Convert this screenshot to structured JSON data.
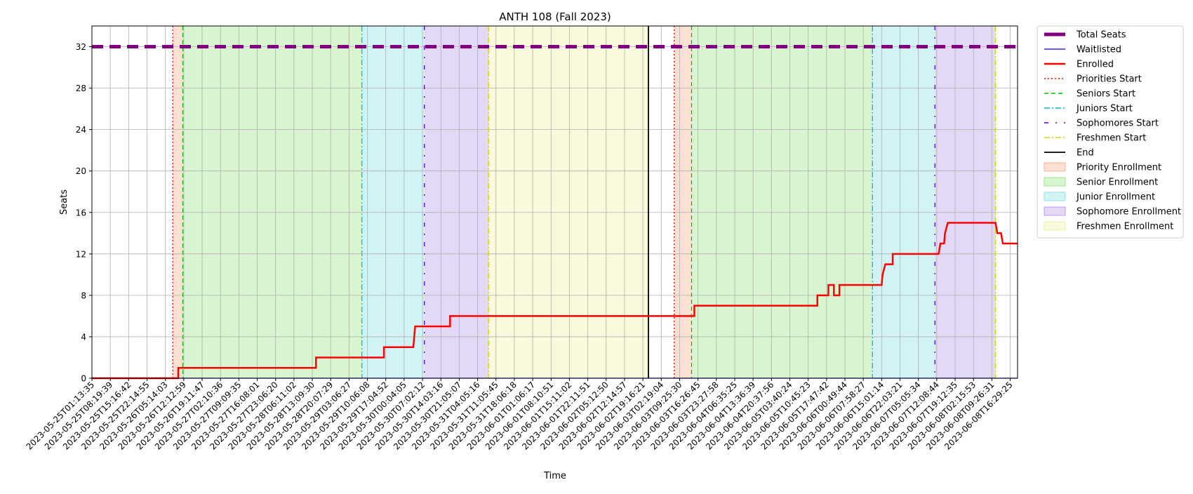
{
  "chart_data": {
    "type": "line",
    "title": "ANTH 108 (Fall 2023)",
    "xlabel": "Time",
    "ylabel": "Seats",
    "ylim": [
      0,
      34
    ],
    "yticks": [
      0,
      4,
      8,
      12,
      16,
      20,
      24,
      28,
      32
    ],
    "grid": true,
    "legend_position": "outside-right",
    "x_tick_labels": [
      "2023-05-25T01:13:35",
      "2023-05-25T08:19:39",
      "2023-05-25T15:16:42",
      "2023-05-25T22:14:55",
      "2023-05-26T05:14:03",
      "2023-05-26T12:12:59",
      "2023-05-26T19:11:47",
      "2023-05-27T02:10:36",
      "2023-05-27T09:09:35",
      "2023-05-27T16:08:01",
      "2023-05-27T23:06:20",
      "2023-05-28T06:11:02",
      "2023-05-28T13:09:30",
      "2023-05-28T20:07:29",
      "2023-05-29T03:06:27",
      "2023-05-29T10:06:08",
      "2023-05-29T17:04:52",
      "2023-05-30T00:04:05",
      "2023-05-30T07:02:12",
      "2023-05-30T14:03:16",
      "2023-05-30T21:05:07",
      "2023-05-31T04:05:16",
      "2023-05-31T11:05:45",
      "2023-05-31T18:06:18",
      "2023-06-01T01:06:17",
      "2023-06-01T08:10:51",
      "2023-06-01T15:11:02",
      "2023-06-01T22:11:51",
      "2023-06-02T05:12:50",
      "2023-06-02T12:14:57",
      "2023-06-02T19:16:21",
      "2023-06-03T02:19:04",
      "2023-06-03T09:25:30",
      "2023-06-03T16:26:45",
      "2023-06-03T23:27:58",
      "2023-06-04T06:35:25",
      "2023-06-04T13:36:39",
      "2023-06-04T20:37:56",
      "2023-06-05T03:40:24",
      "2023-06-05T10:45:23",
      "2023-06-05T17:47:42",
      "2023-06-06T00:49:44",
      "2023-06-06T07:58:27",
      "2023-06-06T15:01:14",
      "2023-06-06T22:03:21",
      "2023-06-07T05:05:34",
      "2023-06-07T12:08:44",
      "2023-06-07T19:12:35",
      "2023-06-08T02:15:53",
      "2023-06-08T09:26:31",
      "2023-06-08T16:29:25"
    ],
    "x_range_ticks": [
      0,
      50.4
    ],
    "total_seats": 32,
    "series": [
      {
        "name": "Total Seats",
        "color": "#800080",
        "points": [
          [
            0,
            32
          ],
          [
            50.4,
            32
          ]
        ]
      },
      {
        "name": "Waitlisted",
        "color": "#0000ff",
        "points": [
          [
            0,
            0
          ],
          [
            50.4,
            0
          ]
        ]
      },
      {
        "name": "Enrolled",
        "color": "#ff0000",
        "points": [
          [
            0,
            0
          ],
          [
            4.7,
            0
          ],
          [
            4.7,
            1
          ],
          [
            12.2,
            1
          ],
          [
            12.2,
            2
          ],
          [
            15.9,
            2
          ],
          [
            15.9,
            3
          ],
          [
            17.5,
            3
          ],
          [
            17.55,
            4
          ],
          [
            17.6,
            5
          ],
          [
            19.5,
            5
          ],
          [
            19.5,
            6
          ],
          [
            32.8,
            6
          ],
          [
            32.8,
            7
          ],
          [
            39.5,
            7
          ],
          [
            39.5,
            8
          ],
          [
            40.1,
            8
          ],
          [
            40.1,
            9
          ],
          [
            40.4,
            9
          ],
          [
            40.4,
            8
          ],
          [
            40.7,
            8
          ],
          [
            40.7,
            9
          ],
          [
            43.0,
            9
          ],
          [
            43.05,
            10
          ],
          [
            43.2,
            11
          ],
          [
            43.6,
            11
          ],
          [
            43.6,
            12
          ],
          [
            46.1,
            12
          ],
          [
            46.2,
            13
          ],
          [
            46.4,
            13
          ],
          [
            46.45,
            14
          ],
          [
            46.6,
            15
          ],
          [
            49.2,
            15
          ],
          [
            49.3,
            14
          ],
          [
            49.5,
            14
          ],
          [
            49.6,
            13
          ],
          [
            50.4,
            13
          ]
        ]
      }
    ],
    "event_lines": [
      {
        "name": "Priorities Start",
        "color": "#ff0000",
        "style": "dotted",
        "x": [
          4.4,
          31.7
        ]
      },
      {
        "name": "Seniors Start",
        "color": "#00c000",
        "style": "dashed",
        "x": [
          4.95,
          32.65
        ]
      },
      {
        "name": "Juniors Start",
        "color": "#00bfbf",
        "style": "dashdot",
        "x": [
          14.7,
          42.5
        ]
      },
      {
        "name": "Sophomores Start",
        "color": "#5500cc",
        "style": "dashdot-sparse",
        "x": [
          18.1,
          45.9
        ]
      },
      {
        "name": "Freshmen Start",
        "color": "#d4d400",
        "style": "dashdot",
        "x": [
          21.6,
          49.2
        ]
      },
      {
        "name": "End",
        "color": "#000000",
        "style": "solid",
        "x": [
          30.3
        ]
      }
    ],
    "phases": [
      {
        "name": "Priority Enrollment",
        "color": "#f4a582",
        "ranges": [
          [
            4.4,
            4.95
          ],
          [
            31.7,
            32.65
          ]
        ]
      },
      {
        "name": "Senior Enrollment",
        "color": "#8fe07a",
        "ranges": [
          [
            4.95,
            14.7
          ],
          [
            32.65,
            42.5
          ]
        ]
      },
      {
        "name": "Junior Enrollment",
        "color": "#7fdce6",
        "ranges": [
          [
            14.7,
            18.1
          ],
          [
            42.5,
            45.9
          ]
        ]
      },
      {
        "name": "Sophomore Enrollment",
        "color": "#b08ee6",
        "ranges": [
          [
            18.1,
            21.6
          ],
          [
            45.9,
            49.2
          ]
        ]
      },
      {
        "name": "Freshmen Enrollment",
        "color": "#eeee99",
        "ranges": [
          [
            21.6,
            30.3
          ]
        ]
      }
    ]
  }
}
